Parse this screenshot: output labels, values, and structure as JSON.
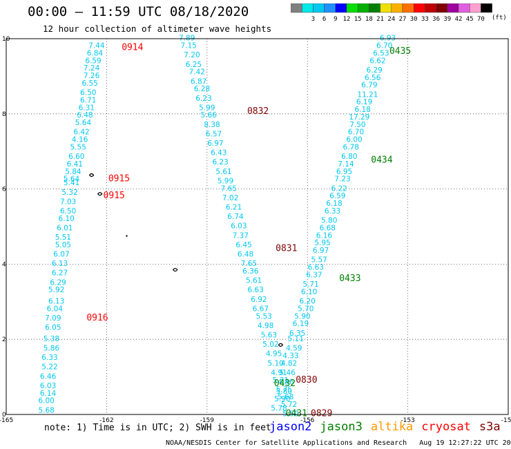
{
  "title": "00:00 – 11:59 UTC 08/18/2020",
  "subtitle": "12 hour collection of altimeter wave heights",
  "colorbar": {
    "unit": "(ft)",
    "bins": [
      {
        "label": "",
        "color": "#808080"
      },
      {
        "label": "3",
        "color": "#00e8e8"
      },
      {
        "label": "6",
        "color": "#00c8f0"
      },
      {
        "label": "9",
        "color": "#1e90ff"
      },
      {
        "label": "12",
        "color": "#0000ff"
      },
      {
        "label": "15",
        "color": "#00e000"
      },
      {
        "label": "18",
        "color": "#00b000"
      },
      {
        "label": "21",
        "color": "#008000"
      },
      {
        "label": "24",
        "color": "#f0e000"
      },
      {
        "label": "27",
        "color": "#ffb000"
      },
      {
        "label": "30",
        "color": "#ff7000"
      },
      {
        "label": "33",
        "color": "#ff0000"
      },
      {
        "label": "36",
        "color": "#c00000"
      },
      {
        "label": "39",
        "color": "#800000"
      },
      {
        "label": "42",
        "color": "#a000a0"
      },
      {
        "label": "45",
        "color": "#e060e0"
      },
      {
        "label": "70",
        "color": "#ffa0d0"
      },
      {
        "label": "",
        "color": "#000000"
      }
    ]
  },
  "note": "note: 1) Time is in UTC; 2) SWH is in feet",
  "credit": "NOAA/NESDIS Center for Satellite Applications and Research   Aug 19 12:27:22 UTC 2020",
  "missions": [
    {
      "name": "jason2",
      "color": "#0000ff"
    },
    {
      "name": "jason3",
      "color": "#008000"
    },
    {
      "name": "altika",
      "color": "#ff9900"
    },
    {
      "name": "cryosat",
      "color": "#ff0000"
    },
    {
      "name": "s3a",
      "color": "#800000"
    }
  ],
  "chart_data": {
    "type": "scatter",
    "xlim": [
      -165,
      -150
    ],
    "ylim": [
      0,
      10
    ],
    "xticks": [
      "-165",
      "-162",
      "-159",
      "-156",
      "-153",
      "-150"
    ],
    "yticks": [
      "0",
      "2",
      "4",
      "6",
      "8",
      "10"
    ],
    "grid": true,
    "point_color": "#00c8f0",
    "tracks": [
      {
        "name": "track-0914-0916",
        "points": [
          {
            "x": -162.3,
            "y": 9.75,
            "v": "7.44"
          },
          {
            "x": -162.35,
            "y": 9.55,
            "v": "6.84"
          },
          {
            "x": -162.4,
            "y": 9.35,
            "v": "6.59"
          },
          {
            "x": -162.45,
            "y": 9.15,
            "v": "7.24"
          },
          {
            "x": -162.45,
            "y": 8.95,
            "v": "7.26"
          },
          {
            "x": -162.5,
            "y": 8.75,
            "v": "6.55"
          },
          {
            "x": -162.55,
            "y": 8.5,
            "v": "6.50"
          },
          {
            "x": -162.55,
            "y": 8.3,
            "v": "6.71"
          },
          {
            "x": -162.6,
            "y": 8.1,
            "v": "6.31"
          },
          {
            "x": -162.65,
            "y": 7.9,
            "v": "6.48"
          },
          {
            "x": -162.7,
            "y": 7.7,
            "v": "5.64"
          },
          {
            "x": -162.75,
            "y": 7.45,
            "v": "6.42"
          },
          {
            "x": -162.8,
            "y": 7.25,
            "v": "4.16"
          },
          {
            "x": -162.85,
            "y": 7.05,
            "v": "5.55"
          },
          {
            "x": -162.9,
            "y": 6.8,
            "v": "6.60"
          },
          {
            "x": -162.95,
            "y": 6.6,
            "v": "6.41"
          },
          {
            "x": -163.0,
            "y": 6.4,
            "v": "5.84"
          },
          {
            "x": -163.05,
            "y": 6.2,
            "v": "5.64"
          },
          {
            "x": -163.05,
            "y": 6.1,
            "v": "5.41"
          },
          {
            "x": -163.1,
            "y": 5.85,
            "v": "5.32"
          },
          {
            "x": -163.15,
            "y": 5.6,
            "v": "7.03"
          },
          {
            "x": -163.15,
            "y": 5.35,
            "v": "6.50"
          },
          {
            "x": -163.2,
            "y": 5.15,
            "v": "6.10"
          },
          {
            "x": -163.25,
            "y": 4.9,
            "v": "6.01"
          },
          {
            "x": -163.3,
            "y": 4.65,
            "v": "5.51"
          },
          {
            "x": -163.3,
            "y": 4.45,
            "v": "5.05"
          },
          {
            "x": -163.35,
            "y": 4.2,
            "v": "6.07"
          },
          {
            "x": -163.4,
            "y": 3.95,
            "v": "6.13"
          },
          {
            "x": -163.4,
            "y": 3.7,
            "v": "6.27"
          },
          {
            "x": -163.45,
            "y": 3.45,
            "v": "6.29"
          },
          {
            "x": -163.5,
            "y": 3.25,
            "v": "5.92"
          },
          {
            "x": -163.5,
            "y": 2.95,
            "v": "6.13"
          },
          {
            "x": -163.55,
            "y": 2.75,
            "v": "6.04"
          },
          {
            "x": -163.6,
            "y": 2.5,
            "v": "7.09"
          },
          {
            "x": -163.6,
            "y": 2.25,
            "v": "6.05"
          },
          {
            "x": -163.65,
            "y": 1.95,
            "v": "5.38"
          },
          {
            "x": -163.65,
            "y": 1.7,
            "v": "5.86"
          },
          {
            "x": -163.7,
            "y": 1.45,
            "v": "6.33"
          },
          {
            "x": -163.7,
            "y": 1.2,
            "v": "5.22"
          },
          {
            "x": -163.75,
            "y": 0.95,
            "v": "6.46"
          },
          {
            "x": -163.75,
            "y": 0.7,
            "v": "6.03"
          },
          {
            "x": -163.75,
            "y": 0.5,
            "v": "6.14"
          },
          {
            "x": -163.8,
            "y": 0.3,
            "v": "6.00"
          },
          {
            "x": -163.8,
            "y": 0.05,
            "v": "5.68"
          }
        ]
      },
      {
        "name": "track-0829-0832",
        "points": [
          {
            "x": -159.6,
            "y": 9.95,
            "v": "7.89"
          },
          {
            "x": -159.55,
            "y": 9.75,
            "v": "7.15"
          },
          {
            "x": -159.45,
            "y": 9.5,
            "v": "7.20"
          },
          {
            "x": -159.4,
            "y": 9.25,
            "v": "6.25"
          },
          {
            "x": -159.3,
            "y": 9.05,
            "v": "7.42"
          },
          {
            "x": -159.25,
            "y": 8.8,
            "v": "6.87"
          },
          {
            "x": -159.15,
            "y": 8.6,
            "v": "6.28"
          },
          {
            "x": -159.1,
            "y": 8.35,
            "v": "6.23"
          },
          {
            "x": -159.0,
            "y": 8.1,
            "v": "5.99"
          },
          {
            "x": -158.95,
            "y": 7.9,
            "v": "5.66"
          },
          {
            "x": -158.85,
            "y": 7.65,
            "v": "8.38"
          },
          {
            "x": -158.8,
            "y": 7.4,
            "v": "6.57"
          },
          {
            "x": -158.75,
            "y": 7.15,
            "v": "6.97"
          },
          {
            "x": -158.65,
            "y": 6.9,
            "v": "6.43"
          },
          {
            "x": -158.6,
            "y": 6.65,
            "v": "6.23"
          },
          {
            "x": -158.5,
            "y": 6.4,
            "v": "5.61"
          },
          {
            "x": -158.45,
            "y": 6.15,
            "v": "5.99"
          },
          {
            "x": -158.35,
            "y": 5.95,
            "v": "7.65"
          },
          {
            "x": -158.3,
            "y": 5.7,
            "v": "7.02"
          },
          {
            "x": -158.2,
            "y": 5.45,
            "v": "6.21"
          },
          {
            "x": -158.15,
            "y": 5.2,
            "v": "6.74"
          },
          {
            "x": -158.05,
            "y": 4.95,
            "v": "6.03"
          },
          {
            "x": -158.0,
            "y": 4.7,
            "v": "7.37"
          },
          {
            "x": -157.9,
            "y": 4.45,
            "v": "6.45"
          },
          {
            "x": -157.85,
            "y": 4.2,
            "v": "6.48"
          },
          {
            "x": -157.75,
            "y": 3.95,
            "v": "7.65"
          },
          {
            "x": -157.7,
            "y": 3.75,
            "v": "6.36"
          },
          {
            "x": -157.6,
            "y": 3.5,
            "v": "5.61"
          },
          {
            "x": -157.55,
            "y": 3.25,
            "v": "6.63"
          },
          {
            "x": -157.45,
            "y": 3.0,
            "v": "6.92"
          },
          {
            "x": -157.4,
            "y": 2.75,
            "v": "6.67"
          },
          {
            "x": -157.3,
            "y": 2.55,
            "v": "5.53"
          },
          {
            "x": -157.25,
            "y": 2.3,
            "v": "4.98"
          },
          {
            "x": -157.15,
            "y": 2.05,
            "v": "5.63"
          },
          {
            "x": -157.1,
            "y": 1.8,
            "v": "5.02"
          },
          {
            "x": -157.0,
            "y": 1.55,
            "v": "4.95"
          },
          {
            "x": -156.95,
            "y": 1.3,
            "v": "5.10"
          },
          {
            "x": -156.85,
            "y": 1.05,
            "v": "4.91"
          },
          {
            "x": -156.8,
            "y": 0.85,
            "v": "5.31"
          },
          {
            "x": -156.7,
            "y": 0.6,
            "v": "5.75"
          },
          {
            "x": -156.65,
            "y": 0.4,
            "v": "5.68"
          },
          {
            "x": -156.55,
            "y": 0.2,
            "v": "5.72"
          },
          {
            "x": -156.5,
            "y": -0.05,
            "v": "5.50"
          }
        ]
      },
      {
        "name": "track-0431-0435",
        "points": [
          {
            "x": -153.6,
            "y": 9.95,
            "v": "6.93"
          },
          {
            "x": -153.7,
            "y": 9.75,
            "v": "6.70"
          },
          {
            "x": -153.8,
            "y": 9.55,
            "v": "6.53"
          },
          {
            "x": -153.9,
            "y": 9.35,
            "v": "6.62"
          },
          {
            "x": -154.0,
            "y": 9.1,
            "v": "6.29"
          },
          {
            "x": -154.05,
            "y": 8.9,
            "v": "6.56"
          },
          {
            "x": -154.15,
            "y": 8.7,
            "v": "6.79"
          },
          {
            "x": -154.2,
            "y": 8.45,
            "v": "11.21"
          },
          {
            "x": -154.3,
            "y": 8.25,
            "v": "6.19"
          },
          {
            "x": -154.35,
            "y": 8.05,
            "v": "6.18"
          },
          {
            "x": -154.45,
            "y": 7.85,
            "v": "17.29"
          },
          {
            "x": -154.5,
            "y": 7.65,
            "v": "7.50"
          },
          {
            "x": -154.55,
            "y": 7.45,
            "v": "6.70"
          },
          {
            "x": -154.6,
            "y": 7.25,
            "v": "6.00"
          },
          {
            "x": -154.7,
            "y": 7.05,
            "v": "6.78"
          },
          {
            "x": -154.75,
            "y": 6.8,
            "v": "6.80"
          },
          {
            "x": -154.85,
            "y": 6.6,
            "v": "7.14"
          },
          {
            "x": -154.9,
            "y": 6.4,
            "v": "6.95"
          },
          {
            "x": -154.95,
            "y": 6.2,
            "v": "7.23"
          },
          {
            "x": -155.05,
            "y": 5.95,
            "v": "6.22"
          },
          {
            "x": -155.1,
            "y": 5.75,
            "v": "6.59"
          },
          {
            "x": -155.2,
            "y": 5.55,
            "v": "6.18"
          },
          {
            "x": -155.25,
            "y": 5.35,
            "v": "6.33"
          },
          {
            "x": -155.35,
            "y": 5.1,
            "v": "5.80"
          },
          {
            "x": -155.4,
            "y": 4.9,
            "v": "6.68"
          },
          {
            "x": -155.5,
            "y": 4.7,
            "v": "6.16"
          },
          {
            "x": -155.55,
            "y": 4.5,
            "v": "5.95"
          },
          {
            "x": -155.6,
            "y": 4.3,
            "v": "6.97"
          },
          {
            "x": -155.65,
            "y": 4.05,
            "v": "5.57"
          },
          {
            "x": -155.75,
            "y": 3.85,
            "v": "6.63"
          },
          {
            "x": -155.8,
            "y": 3.65,
            "v": "6.37"
          },
          {
            "x": -155.9,
            "y": 3.4,
            "v": "5.71"
          },
          {
            "x": -155.95,
            "y": 3.2,
            "v": "6.10"
          },
          {
            "x": -156.0,
            "y": 2.95,
            "v": "6.20"
          },
          {
            "x": -156.05,
            "y": 2.75,
            "v": "5.70"
          },
          {
            "x": -156.15,
            "y": 2.55,
            "v": "5.90"
          },
          {
            "x": -156.2,
            "y": 2.35,
            "v": "6.19"
          },
          {
            "x": -156.3,
            "y": 2.1,
            "v": "6.35"
          },
          {
            "x": -156.35,
            "y": 1.95,
            "v": "5.11"
          },
          {
            "x": -156.4,
            "y": 1.7,
            "v": "4.59"
          },
          {
            "x": -156.5,
            "y": 1.5,
            "v": "4.33"
          },
          {
            "x": -156.55,
            "y": 1.3,
            "v": "4.82"
          },
          {
            "x": -156.6,
            "y": 1.05,
            "v": "5.46"
          },
          {
            "x": -156.65,
            "y": 0.8,
            "v": "4.86"
          },
          {
            "x": -156.7,
            "y": 0.55,
            "v": "5.80"
          },
          {
            "x": -156.75,
            "y": 0.35,
            "v": "5.90"
          },
          {
            "x": -156.85,
            "y": 0.1,
            "v": "5.78"
          }
        ]
      }
    ],
    "time_labels": [
      {
        "text": "0914",
        "x": -161.55,
        "y": 9.7,
        "color": "#ff0000"
      },
      {
        "text": "0832",
        "x": -157.8,
        "y": 8.0,
        "color": "#800000"
      },
      {
        "text": "0435",
        "x": -153.55,
        "y": 9.6,
        "color": "#008000"
      },
      {
        "text": "0434",
        "x": -154.1,
        "y": 6.7,
        "color": "#008000"
      },
      {
        "text": "0915",
        "x": -161.95,
        "y": 6.2,
        "color": "#ff0000"
      },
      {
        "text": "0915",
        "x": -162.1,
        "y": 5.75,
        "color": "#ff0000"
      },
      {
        "text": "0831",
        "x": -156.95,
        "y": 4.35,
        "color": "#800000"
      },
      {
        "text": "0433",
        "x": -155.05,
        "y": 3.55,
        "color": "#008000"
      },
      {
        "text": "0916",
        "x": -162.6,
        "y": 2.5,
        "color": "#ff0000"
      },
      {
        "text": "0830",
        "x": -156.35,
        "y": 0.85,
        "color": "#800000"
      },
      {
        "text": "0432",
        "x": -157.0,
        "y": 0.75,
        "color": "#008000"
      },
      {
        "text": "0431",
        "x": -156.65,
        "y": -0.05,
        "color": "#008000"
      },
      {
        "text": "0829",
        "x": -155.9,
        "y": -0.05,
        "color": "#800000"
      }
    ]
  }
}
